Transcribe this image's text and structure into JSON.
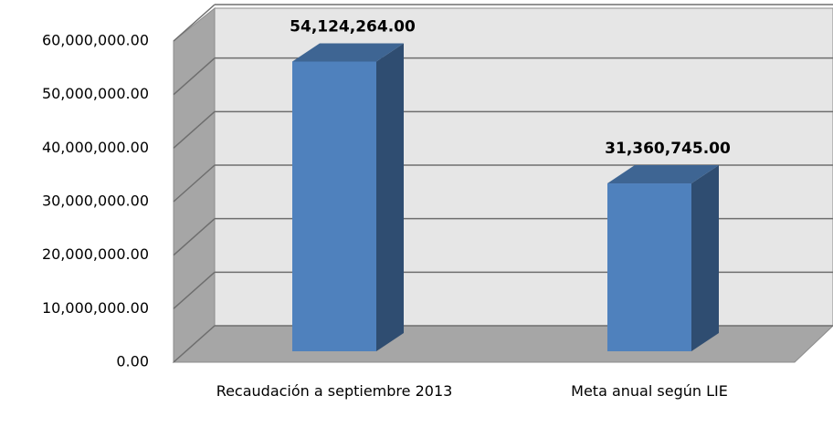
{
  "chart_data": {
    "type": "bar3d",
    "categories": [
      "Recaudación a septiembre 2013",
      "Meta anual según LIE"
    ],
    "values": [
      54124264,
      31360745
    ],
    "value_labels": [
      "54,124,264.00",
      "31,360,745.00"
    ],
    "color": "#4f81bd",
    "ylim": [
      0,
      60000000
    ],
    "yticks": [
      {
        "value": 0,
        "label": "0.00"
      },
      {
        "value": 10000000,
        "label": "10,000,000.00"
      },
      {
        "value": 20000000,
        "label": "20,000,000.00"
      },
      {
        "value": 30000000,
        "label": "30,000,000.00"
      },
      {
        "value": 40000000,
        "label": "40,000,000.00"
      },
      {
        "value": 50000000,
        "label": "50,000,000.00"
      },
      {
        "value": 60000000,
        "label": "60,000,000.00"
      }
    ],
    "grid": true
  }
}
